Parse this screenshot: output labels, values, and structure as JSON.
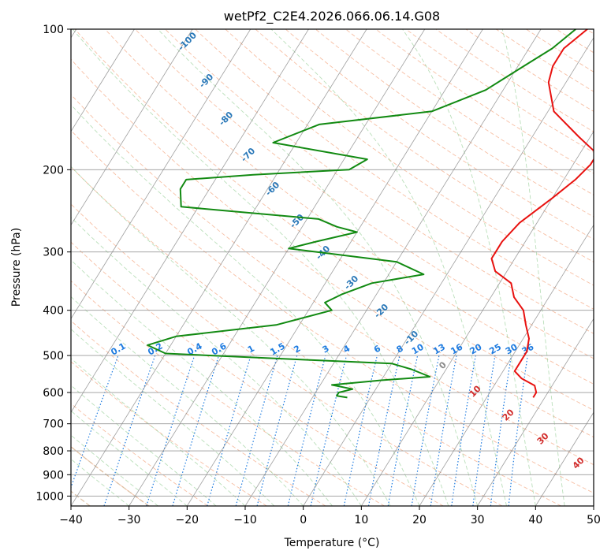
{
  "chart_data": {
    "type": "line",
    "title": "wetPf2_C2E4.2026.066.06.14.G08",
    "xlabel": "Temperature (°C)",
    "ylabel": "Pressure (hPa)",
    "xlim": [
      -40,
      50
    ],
    "ylim": [
      1050,
      100
    ],
    "y_scale": "log",
    "grid": true,
    "x_ticks": [
      -40,
      -30,
      -20,
      -10,
      0,
      10,
      20,
      30,
      40,
      50
    ],
    "y_ticks": [
      100,
      200,
      300,
      400,
      500,
      600,
      700,
      800,
      900,
      1000
    ],
    "series": [
      {
        "color": "#e8110f",
        "points": [
          [
            -2,
            100
          ],
          [
            -4,
            110
          ],
          [
            -4,
            120
          ],
          [
            -3,
            130
          ],
          [
            1,
            150
          ],
          [
            8,
            170
          ],
          [
            13,
            185
          ],
          [
            13,
            195
          ],
          [
            12,
            210
          ],
          [
            10,
            230
          ],
          [
            7,
            260
          ],
          [
            6,
            285
          ],
          [
            6,
            310
          ],
          [
            8,
            330
          ],
          [
            12,
            350
          ],
          [
            14,
            375
          ],
          [
            17,
            400
          ],
          [
            19,
            430
          ],
          [
            21,
            460
          ],
          [
            22,
            490
          ],
          [
            22,
            520
          ],
          [
            22,
            540
          ],
          [
            24,
            560
          ],
          [
            27,
            580
          ],
          [
            28,
            600
          ],
          [
            28,
            615
          ]
        ]
      },
      {
        "color": "#128a12",
        "points": [
          [
            -4,
            100
          ],
          [
            -6,
            110
          ],
          [
            -9,
            120
          ],
          [
            -13,
            135
          ],
          [
            -20,
            150
          ],
          [
            -38,
            160
          ],
          [
            -44,
            175
          ],
          [
            -26,
            190
          ],
          [
            -28,
            200
          ],
          [
            -44,
            205
          ],
          [
            -55,
            210
          ],
          [
            -55,
            220
          ],
          [
            -53,
            240
          ],
          [
            -28,
            255
          ],
          [
            -24,
            265
          ],
          [
            -20,
            272
          ],
          [
            -26,
            285
          ],
          [
            -30,
            295
          ],
          [
            -10,
            315
          ],
          [
            -4,
            335
          ],
          [
            -12,
            350
          ],
          [
            -16,
            370
          ],
          [
            -18,
            385
          ],
          [
            -16,
            400
          ],
          [
            -24,
            430
          ],
          [
            -40,
            455
          ],
          [
            -44,
            475
          ],
          [
            -40,
            495
          ],
          [
            -16,
            510
          ],
          [
            0,
            520
          ],
          [
            4,
            535
          ],
          [
            8,
            555
          ],
          [
            0,
            565
          ],
          [
            -8,
            578
          ],
          [
            -4,
            590
          ],
          [
            -6,
            600
          ],
          [
            -6,
            610
          ],
          [
            -4,
            615
          ]
        ]
      }
    ],
    "dry_adiabat_labels": [
      "-100",
      "-90",
      "-80",
      "-70",
      "-60",
      "-50",
      "-40",
      "-30",
      "-20",
      "-10",
      "0",
      "10",
      "20",
      "30",
      "40"
    ],
    "mixing_ratio_labels": [
      "0.1",
      "0.2",
      "0.4",
      "0.6",
      "1",
      "1.5",
      "2",
      "3",
      "4",
      "6",
      "8",
      "10",
      "13",
      "16",
      "20",
      "25",
      "30",
      "36"
    ],
    "colors": {
      "temperature": "#e8110f",
      "dewpoint": "#128a12",
      "isotherms": "#7f7f7f",
      "isobars": "#9a9a9a",
      "dry_adiabats": "#f08a5a",
      "moist_adiabats": "#8cc98c",
      "mixing_ratio": "#1e7be0",
      "label_blue": "#2a78b8",
      "label_red": "#d12b2b",
      "label_zero": "#8a8a8a",
      "dry_adiabat_tan": "#d8b896"
    }
  }
}
